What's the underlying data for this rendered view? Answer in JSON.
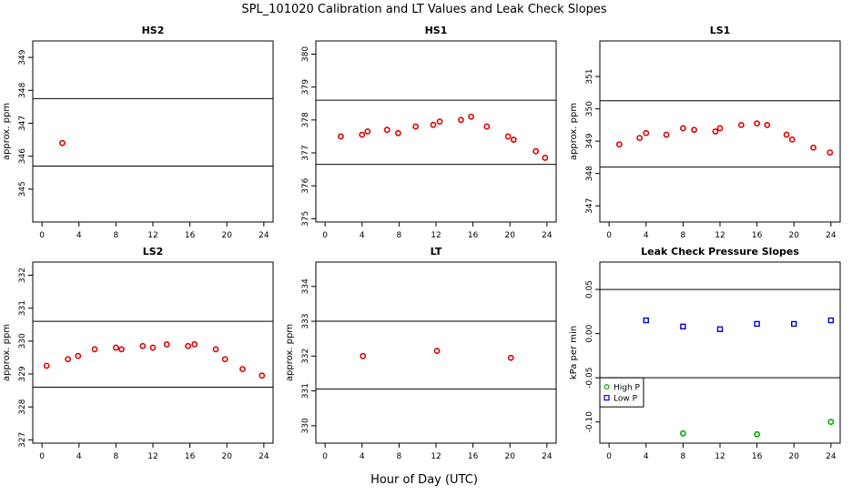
{
  "figure": {
    "title": "SPL_101020  Calibration and LT Values and Leak Check Slopes",
    "xlabel": "Hour of Day (UTC)"
  },
  "colors": {
    "point": "#dd0000",
    "high_p": "#00aa00",
    "low_p": "#0000cc",
    "line": "#000000"
  },
  "chart_data": [
    {
      "id": "hs2",
      "type": "scatter",
      "title": "HS2",
      "ylabel": "approx. ppm",
      "xlim": [
        -1,
        25
      ],
      "ylim": [
        344,
        349.5
      ],
      "xticks": [
        0,
        4,
        8,
        12,
        16,
        20,
        24
      ],
      "yticks": [
        345,
        346,
        347,
        348,
        349
      ],
      "hlines": [
        345.7,
        347.75
      ],
      "series": [
        {
          "name": "HS2",
          "color": "#dd0000",
          "x": [
            2.2
          ],
          "y": [
            346.4
          ]
        }
      ]
    },
    {
      "id": "hs1",
      "type": "scatter",
      "title": "HS1",
      "ylabel": "",
      "xlim": [
        -1,
        25
      ],
      "ylim": [
        374.9,
        380.4
      ],
      "xticks": [
        0,
        4,
        8,
        12,
        16,
        20,
        24
      ],
      "yticks": [
        375,
        376,
        377,
        378,
        379,
        380
      ],
      "hlines": [
        376.65,
        378.6
      ],
      "series": [
        {
          "name": "HS1",
          "color": "#dd0000",
          "x": [
            1.7,
            4.0,
            4.6,
            6.7,
            7.9,
            9.8,
            11.7,
            12.4,
            14.7,
            15.8,
            17.5,
            19.8,
            20.4,
            22.8,
            23.8
          ],
          "y": [
            377.5,
            377.55,
            377.65,
            377.7,
            377.6,
            377.8,
            377.85,
            377.95,
            378.0,
            378.1,
            377.8,
            377.5,
            377.4,
            377.05,
            376.85
          ]
        }
      ]
    },
    {
      "id": "ls1",
      "type": "scatter",
      "title": "LS1",
      "ylabel": "approx. ppm",
      "xlim": [
        -1,
        25
      ],
      "ylim": [
        346.5,
        352.1
      ],
      "xticks": [
        0,
        4,
        8,
        12,
        16,
        20,
        24
      ],
      "yticks": [
        347,
        348,
        349,
        350,
        351
      ],
      "hlines": [
        348.2,
        350.25
      ],
      "series": [
        {
          "name": "LS1",
          "color": "#dd0000",
          "x": [
            1.1,
            3.3,
            4.0,
            6.2,
            8.0,
            9.2,
            11.5,
            12.0,
            14.3,
            16.0,
            17.1,
            19.2,
            19.8,
            22.1,
            23.9
          ],
          "y": [
            348.9,
            349.1,
            349.25,
            349.2,
            349.4,
            349.35,
            349.3,
            349.4,
            349.5,
            349.55,
            349.5,
            349.2,
            349.05,
            348.8,
            348.65
          ]
        }
      ]
    },
    {
      "id": "ls2",
      "type": "scatter",
      "title": "LS2",
      "ylabel": "approx. ppm",
      "xlim": [
        -1,
        25
      ],
      "ylim": [
        326.9,
        332.4
      ],
      "xticks": [
        0,
        4,
        8,
        12,
        16,
        20,
        24
      ],
      "yticks": [
        327,
        328,
        329,
        330,
        331,
        332
      ],
      "hlines": [
        328.6,
        330.6
      ],
      "series": [
        {
          "name": "LS2",
          "color": "#dd0000",
          "x": [
            0.5,
            2.8,
            3.9,
            5.7,
            8.0,
            8.6,
            10.9,
            12.0,
            13.5,
            15.8,
            16.5,
            18.8,
            19.8,
            21.7,
            23.8
          ],
          "y": [
            329.25,
            329.45,
            329.55,
            329.75,
            329.8,
            329.75,
            329.85,
            329.8,
            329.9,
            329.85,
            329.9,
            329.75,
            329.45,
            329.15,
            328.95
          ]
        }
      ]
    },
    {
      "id": "lt",
      "type": "scatter",
      "title": "LT",
      "ylabel": "approx. ppm",
      "xlim": [
        -1,
        25
      ],
      "ylim": [
        329.5,
        334.7
      ],
      "xticks": [
        0,
        4,
        8,
        12,
        16,
        20,
        24
      ],
      "yticks": [
        330,
        331,
        332,
        333,
        334
      ],
      "hlines": [
        331.05,
        333.0
      ],
      "series": [
        {
          "name": "LT",
          "color": "#dd0000",
          "x": [
            4.1,
            12.1,
            20.1
          ],
          "y": [
            332.0,
            332.15,
            331.95
          ]
        }
      ]
    },
    {
      "id": "lcps",
      "type": "scatter",
      "title": "Leak Check Pressure Slopes",
      "ylabel": "kPa per min",
      "xlim": [
        -1,
        25
      ],
      "ylim": [
        -0.124,
        0.081
      ],
      "xticks": [
        0,
        4,
        8,
        12,
        16,
        20,
        24
      ],
      "yticks": [
        -0.1,
        -0.05,
        0.0,
        0.05
      ],
      "ytick_labels": [
        "-0.10",
        "-0.05",
        "0.00",
        "0.05"
      ],
      "hlines": [
        -0.05,
        0.05
      ],
      "legend": {
        "position": "bottom-left",
        "entries": [
          "High P",
          "Low P"
        ]
      },
      "series": [
        {
          "name": "High P",
          "color": "#00aa00",
          "x": [
            8.0,
            16.0,
            24.0
          ],
          "y": [
            -0.113,
            -0.114,
            -0.1
          ]
        },
        {
          "name": "Low P",
          "color": "#0000cc",
          "x": [
            4.0,
            8.0,
            12.0,
            16.0,
            20.0,
            24.0
          ],
          "y": [
            0.015,
            0.008,
            0.005,
            0.011,
            0.011,
            0.015
          ]
        }
      ]
    }
  ]
}
